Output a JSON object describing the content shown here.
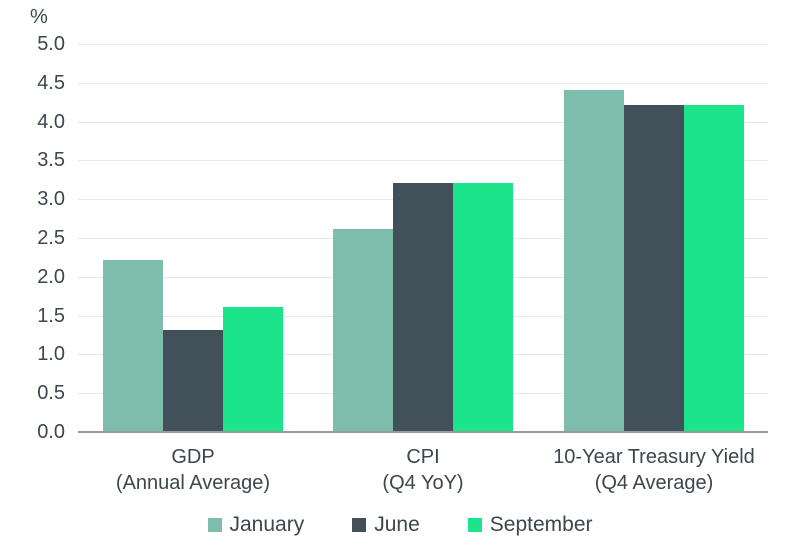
{
  "chart_data": {
    "type": "bar",
    "title": "",
    "xlabel": "",
    "ylabel": "%",
    "ylim": [
      0,
      5.0
    ],
    "ytick_step": 0.5,
    "yticks": [
      "0.0",
      "0.5",
      "1.0",
      "1.5",
      "2.0",
      "2.5",
      "3.0",
      "3.5",
      "4.0",
      "4.5",
      "5.0"
    ],
    "grid": true,
    "legend_position": "bottom",
    "categories": [
      {
        "label": "GDP",
        "sublabel": "(Annual Average)"
      },
      {
        "label": "CPI",
        "sublabel": "(Q4 YoY)"
      },
      {
        "label": "10-Year Treasury Yield",
        "sublabel": "(Q4 Average)"
      }
    ],
    "series": [
      {
        "name": "January",
        "color": "#7EBCAB",
        "values": [
          2.2,
          2.6,
          4.4
        ]
      },
      {
        "name": "June",
        "color": "#42505A",
        "values": [
          1.3,
          3.2,
          4.2
        ]
      },
      {
        "name": "September",
        "color": "#1BE48B",
        "values": [
          1.6,
          3.2,
          4.2
        ]
      }
    ]
  },
  "colors": {
    "text": "#3C474C",
    "gridline": "#E8E8E8",
    "axis_line": "#9B9B9B",
    "background": "#FFFFFF"
  }
}
